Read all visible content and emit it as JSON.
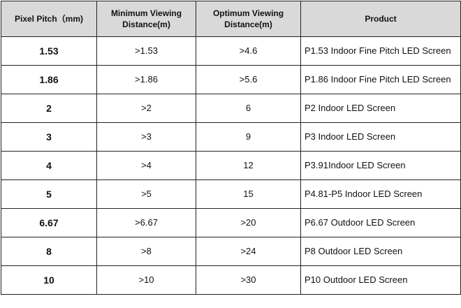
{
  "table": {
    "header": [
      "Pixel Pitch（mm)",
      "Minimum Viewing Distance(m)",
      "Optimum Viewing Distance(m)",
      "Product"
    ],
    "rows": [
      [
        "1.53",
        ">1.53",
        ">4.6",
        "P1.53 Indoor Fine Pitch LED Screen"
      ],
      [
        "1.86",
        ">1.86",
        ">5.6",
        "P1.86 Indoor Fine Pitch LED Screen"
      ],
      [
        "2",
        ">2",
        "6",
        "P2 Indoor LED Screen"
      ],
      [
        "3",
        ">3",
        "9",
        "P3 Indoor LED Screen"
      ],
      [
        "4",
        ">4",
        "12",
        "P3.91Indoor LED Screen"
      ],
      [
        "5",
        ">5",
        "15",
        "P4.81-P5 Indoor LED Screen"
      ],
      [
        "6.67",
        ">6.67",
        ">20",
        "P6.67 Outdoor LED Screen"
      ],
      [
        "8",
        ">8",
        ">24",
        "P8 Outdoor LED Screen"
      ],
      [
        "10",
        ">10",
        ">30",
        "P10 Outdoor LED Screen"
      ]
    ]
  }
}
